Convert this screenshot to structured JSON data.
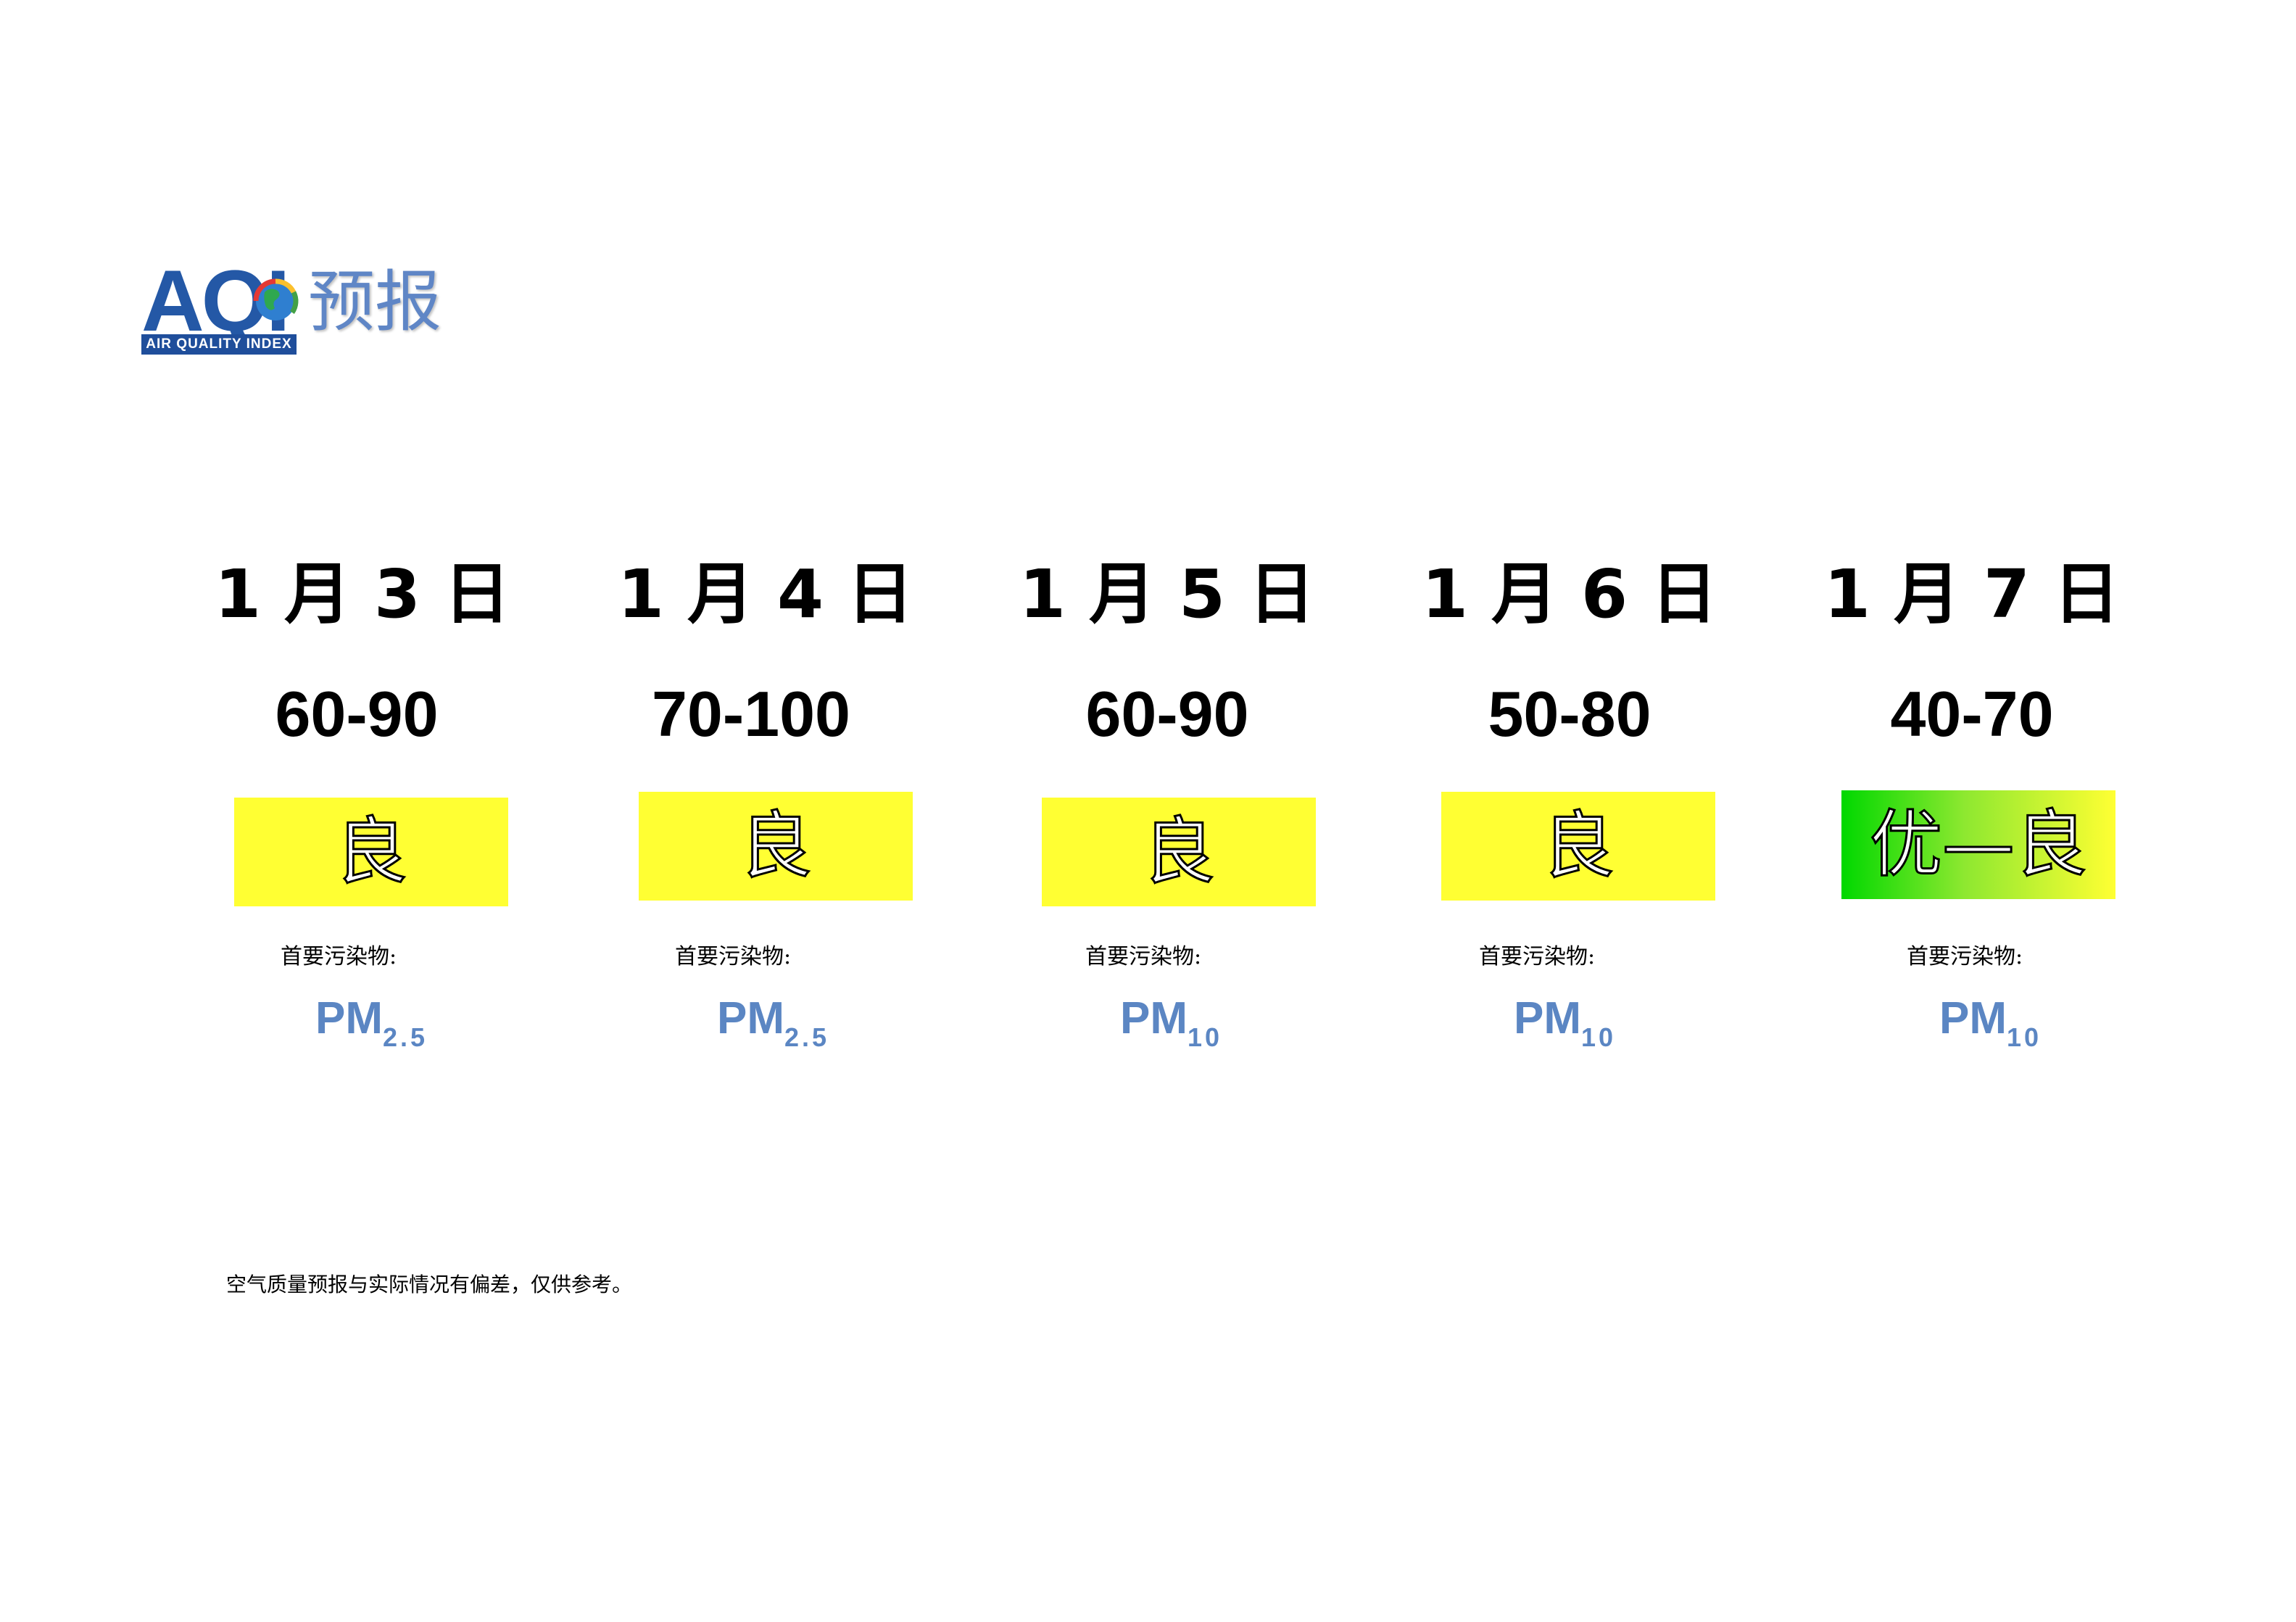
{
  "header": {
    "logo_text": "AQI",
    "logo_band": "AIR QUALITY INDEX",
    "title": "预报"
  },
  "days": [
    {
      "date": "1 月 3 日",
      "range": "60-90",
      "level": "良",
      "level_color": "#ffff33",
      "pollutant_label": "首要污染物:",
      "pollutant_main": "PM",
      "pollutant_sub": "2.5"
    },
    {
      "date": "1 月 4 日",
      "range": "70-100",
      "level": "良",
      "level_color": "#ffff33",
      "pollutant_label": "首要污染物:",
      "pollutant_main": "PM",
      "pollutant_sub": "2.5"
    },
    {
      "date": "1 月 5 日",
      "range": "60-90",
      "level": "良",
      "level_color": "#ffff33",
      "pollutant_label": "首要污染物:",
      "pollutant_main": "PM",
      "pollutant_sub": "10"
    },
    {
      "date": "1 月 6 日",
      "range": "50-80",
      "level": "良",
      "level_color": "#ffff33",
      "pollutant_label": "首要污染物:",
      "pollutant_main": "PM",
      "pollutant_sub": "10"
    },
    {
      "date": "1 月 7 日",
      "range": "40-70",
      "level": "优—良",
      "level_color": "#00d800",
      "pollutant_label": "首要污染物:",
      "pollutant_main": "PM",
      "pollutant_sub": "10"
    }
  ],
  "footer": {
    "note": "空气质量预报与实际情况有偏差，仅供参考。"
  }
}
